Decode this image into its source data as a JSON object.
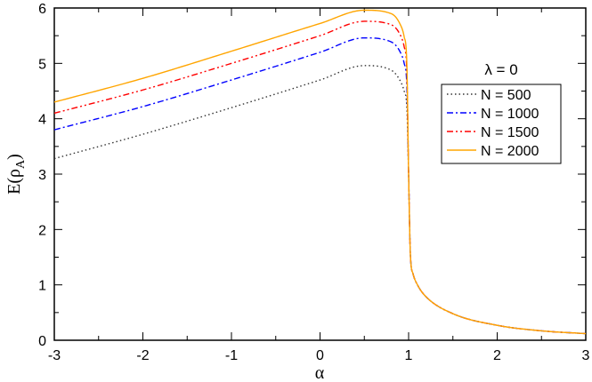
{
  "chart_data": {
    "type": "line",
    "xlabel": "α",
    "ylabel_main": "E(ρ",
    "ylabel_sub": "A",
    "ylabel_close": ")",
    "xlim": [
      -3,
      3
    ],
    "ylim": [
      0,
      6
    ],
    "xticks": [
      "-3",
      "-2",
      "-1",
      "0",
      "1",
      "2",
      "3"
    ],
    "yticks": [
      "0",
      "1",
      "2",
      "3",
      "4",
      "5",
      "6"
    ],
    "legend_title": "λ = 0",
    "legend_position": "right",
    "series": [
      {
        "name": "N = 500",
        "color": "#333333",
        "dash": "dotted",
        "x": [
          -3,
          -2,
          -1,
          0,
          0.5,
          0.8,
          0.9,
          0.95,
          0.98,
          1.0,
          1.02,
          1.05,
          1.1,
          1.2,
          1.5,
          2,
          2.5,
          3
        ],
        "y": [
          3.28,
          3.72,
          4.2,
          4.7,
          4.96,
          4.88,
          4.7,
          4.5,
          4.2,
          3.0,
          1.55,
          1.2,
          1.0,
          0.78,
          0.48,
          0.27,
          0.17,
          0.12
        ]
      },
      {
        "name": "N = 1000",
        "color": "#0000ff",
        "dash": "dashdot",
        "x": [
          -3,
          -2,
          -1,
          0,
          0.5,
          0.8,
          0.9,
          0.95,
          0.98,
          1.0,
          1.02,
          1.05,
          1.1,
          1.2,
          1.5,
          2,
          2.5,
          3
        ],
        "y": [
          3.8,
          4.22,
          4.7,
          5.2,
          5.46,
          5.39,
          5.22,
          5.0,
          4.6,
          3.0,
          1.55,
          1.2,
          1.0,
          0.78,
          0.48,
          0.27,
          0.17,
          0.12
        ]
      },
      {
        "name": "N = 1500",
        "color": "#ff0000",
        "dash": "dashdotdot",
        "x": [
          -3,
          -2,
          -1,
          0,
          0.5,
          0.8,
          0.9,
          0.95,
          0.98,
          1.0,
          1.02,
          1.05,
          1.1,
          1.2,
          1.5,
          2,
          2.5,
          3
        ],
        "y": [
          4.1,
          4.52,
          5.0,
          5.5,
          5.76,
          5.7,
          5.53,
          5.3,
          4.85,
          3.0,
          1.55,
          1.2,
          1.0,
          0.78,
          0.48,
          0.27,
          0.17,
          0.12
        ]
      },
      {
        "name": "N = 2000",
        "color": "#ffa500",
        "dash": "solid",
        "x": [
          -3,
          -2,
          -1,
          0,
          0.5,
          0.8,
          0.9,
          0.95,
          0.98,
          1.0,
          1.02,
          1.05,
          1.1,
          1.2,
          1.5,
          2,
          2.5,
          3
        ],
        "y": [
          4.3,
          4.73,
          5.22,
          5.72,
          5.96,
          5.9,
          5.72,
          5.48,
          5.0,
          3.0,
          1.55,
          1.2,
          1.0,
          0.78,
          0.48,
          0.27,
          0.17,
          0.12
        ]
      }
    ]
  }
}
